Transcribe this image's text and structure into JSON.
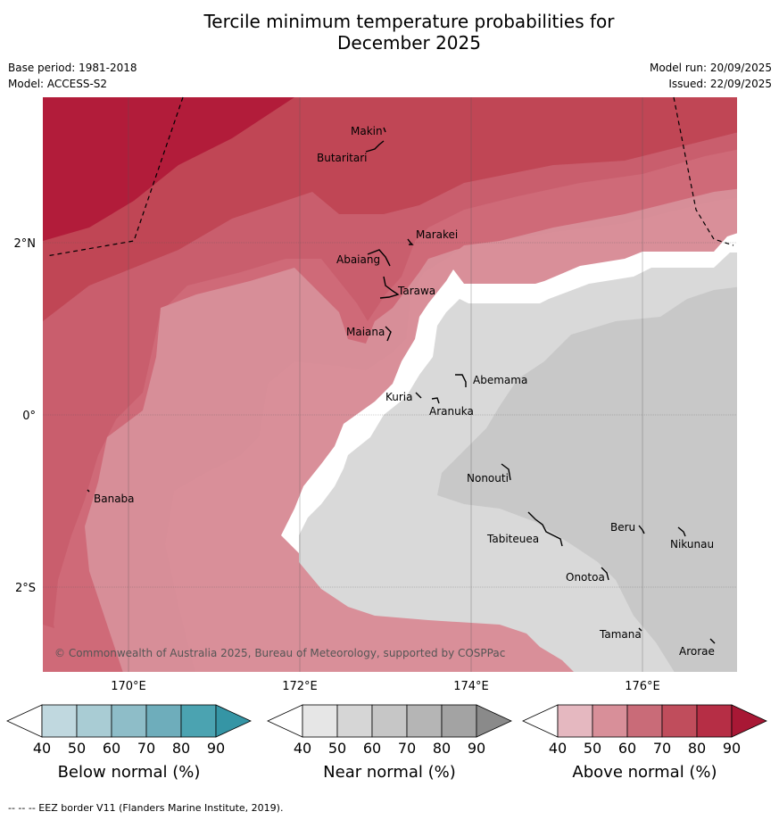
{
  "title_line1": "Tercile minimum temperature probabilities for",
  "title_line2": "December 2025",
  "base_period": "Base period: 1981-2018",
  "model": "Model: ACCESS-S2",
  "model_run": "Model run: 20/09/2025",
  "issued": "Issued: 22/09/2025",
  "map": {
    "longitude_labels": [
      "170°E",
      "172°E",
      "174°E",
      "176°E"
    ],
    "latitude_labels": [
      "2°N",
      "0°",
      "2°S"
    ],
    "islands": [
      {
        "name": "Makin"
      },
      {
        "name": "Butaritari"
      },
      {
        "name": "Marakei"
      },
      {
        "name": "Abaiang"
      },
      {
        "name": "Tarawa"
      },
      {
        "name": "Maiana"
      },
      {
        "name": "Abemama"
      },
      {
        "name": "Kuria"
      },
      {
        "name": "Aranuka"
      },
      {
        "name": "Nonouti"
      },
      {
        "name": "Banaba"
      },
      {
        "name": "Beru"
      },
      {
        "name": "Tabiteuea"
      },
      {
        "name": "Nikunau"
      },
      {
        "name": "Onotoa"
      },
      {
        "name": "Tamana"
      },
      {
        "name": "Arorae"
      }
    ],
    "copyright": "© Commonwealth of Australia 2025, Bureau of Meteorology, supported by COSPPac"
  },
  "colorbars": [
    {
      "title": "Below normal (%)",
      "ticks": [
        "40",
        "50",
        "60",
        "70",
        "80",
        "90"
      ],
      "colors": [
        "#c0d8df",
        "#a9ccd4",
        "#8ebdc8",
        "#6eadbb",
        "#4ba3b1",
        "#3595a5"
      ]
    },
    {
      "title": "Near normal (%)",
      "ticks": [
        "40",
        "50",
        "60",
        "70",
        "80",
        "90"
      ],
      "colors": [
        "#e6e6e6",
        "#d6d6d6",
        "#c6c6c6",
        "#b5b5b5",
        "#a3a3a3",
        "#8a8a8a"
      ]
    },
    {
      "title": "Above normal (%)",
      "ticks": [
        "40",
        "50",
        "60",
        "70",
        "80",
        "90"
      ],
      "colors": [
        "#e5b8c0",
        "#d88f99",
        "#c96b78",
        "#c04d5c",
        "#b62e45",
        "#a81835"
      ]
    }
  ],
  "footer": "--  --  -- EEZ border V11 (Flanders Marine Institute, 2019)."
}
